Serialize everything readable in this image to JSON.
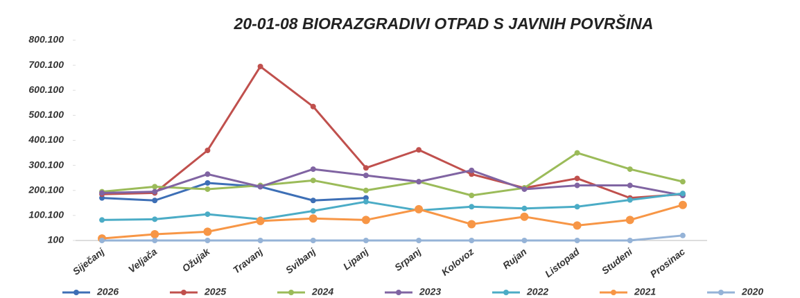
{
  "chart_data": {
    "type": "line",
    "title": "20-01-08 BIORAZGRADIVI OTPAD S JAVNIH POVRŠINA",
    "categories": [
      "Siječanj",
      "Veljača",
      "Ožujak",
      "Travanj",
      "Svibanj",
      "Lipanj",
      "Srpanj",
      "Kolovoz",
      "Rujan",
      "Listopad",
      "Studeni",
      "Prosinac"
    ],
    "series": [
      {
        "name": "2026",
        "color": "#3d6fb6",
        "values": [
          170000,
          160000,
          230000,
          215000,
          160000,
          170000,
          null,
          null,
          null,
          null,
          null,
          null
        ]
      },
      {
        "name": "2025",
        "color": "#c0504d",
        "values": [
          185000,
          190000,
          360000,
          695000,
          535000,
          290000,
          362000,
          265000,
          210000,
          248000,
          170000,
          185000
        ]
      },
      {
        "name": "2024",
        "color": "#9bbb59",
        "values": [
          195000,
          215000,
          205000,
          220000,
          240000,
          200000,
          235000,
          180000,
          210000,
          350000,
          285000,
          235000
        ]
      },
      {
        "name": "2023",
        "color": "#8064a2",
        "values": [
          190000,
          195000,
          265000,
          215000,
          285000,
          260000,
          235000,
          280000,
          205000,
          220000,
          220000,
          180000
        ]
      },
      {
        "name": "2022",
        "color": "#4bacc6",
        "values": [
          82000,
          85000,
          105000,
          85000,
          118000,
          155000,
          120000,
          135000,
          128000,
          135000,
          162000,
          188000
        ]
      },
      {
        "name": "2021",
        "color": "#f79646",
        "values": [
          8000,
          25000,
          35000,
          78000,
          88000,
          82000,
          125000,
          65000,
          95000,
          60000,
          82000,
          142000
        ]
      },
      {
        "name": "2020",
        "color": "#95b3d7",
        "values": [
          100,
          100,
          100,
          100,
          100,
          100,
          100,
          100,
          100,
          100,
          100,
          20000
        ]
      }
    ],
    "ylim": [
      100,
      800100
    ],
    "yticks": [
      100,
      {
        "value": 100100,
        "label": "100.100"
      },
      {
        "value": 200100,
        "label": "200.100"
      },
      {
        "value": 300100,
        "label": "300.100"
      },
      {
        "value": 400100,
        "label": "400.100"
      },
      {
        "value": 500100,
        "label": "500.100"
      },
      {
        "value": 600100,
        "label": "600.100"
      },
      {
        "value": 700100,
        "label": "700.100"
      },
      {
        "value": 800100,
        "label": "800.100"
      }
    ],
    "grid": false
  }
}
